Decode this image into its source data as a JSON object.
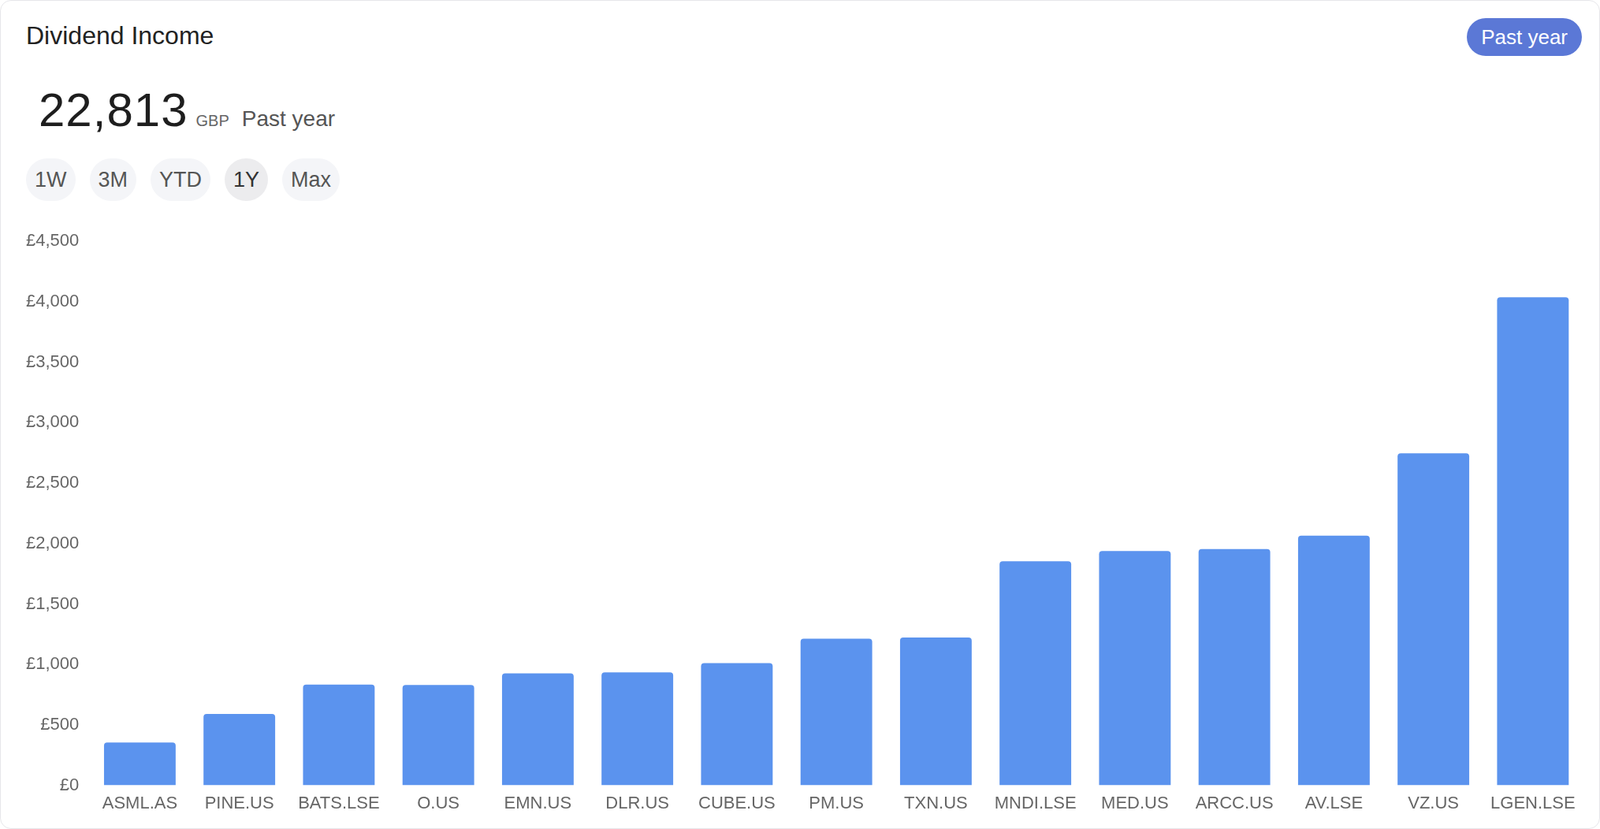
{
  "header": {
    "title": "Dividend Income",
    "total": "22,813",
    "currency": "GBP",
    "period": "Past year",
    "button": "Past year",
    "ranges": [
      "1W",
      "3M",
      "YTD",
      "1Y",
      "Max"
    ],
    "selected_range": "1Y"
  },
  "chart_data": {
    "type": "bar",
    "categories": [
      "ASML.AS",
      "PINE.US",
      "BATS.LSE",
      "O.US",
      "EMN.US",
      "DLR.US",
      "CUBE.US",
      "PM.US",
      "TXN.US",
      "MNDI.LSE",
      "MED.US",
      "ARCC.US",
      "AV.LSE",
      "VZ.US",
      "LGEN.LSE"
    ],
    "values": [
      354,
      590,
      834,
      830,
      927,
      935,
      1011,
      1213,
      1222,
      1854,
      1938,
      1955,
      2065,
      2747,
      4037
    ],
    "color": "#5b93ee",
    "ylim": [
      0,
      4500
    ],
    "yticks": [
      {
        "value": 0,
        "label": "£0"
      },
      {
        "value": 500,
        "label": "£500"
      },
      {
        "value": 1000,
        "label": "£1,000"
      },
      {
        "value": 1500,
        "label": "£1,500"
      },
      {
        "value": 2000,
        "label": "£2,000"
      },
      {
        "value": 2500,
        "label": "£2,500"
      },
      {
        "value": 3000,
        "label": "£3,000"
      },
      {
        "value": 3500,
        "label": "£3,500"
      },
      {
        "value": 4000,
        "label": "£4,000"
      },
      {
        "value": 4500,
        "label": "£4,500"
      }
    ],
    "grid": false
  }
}
